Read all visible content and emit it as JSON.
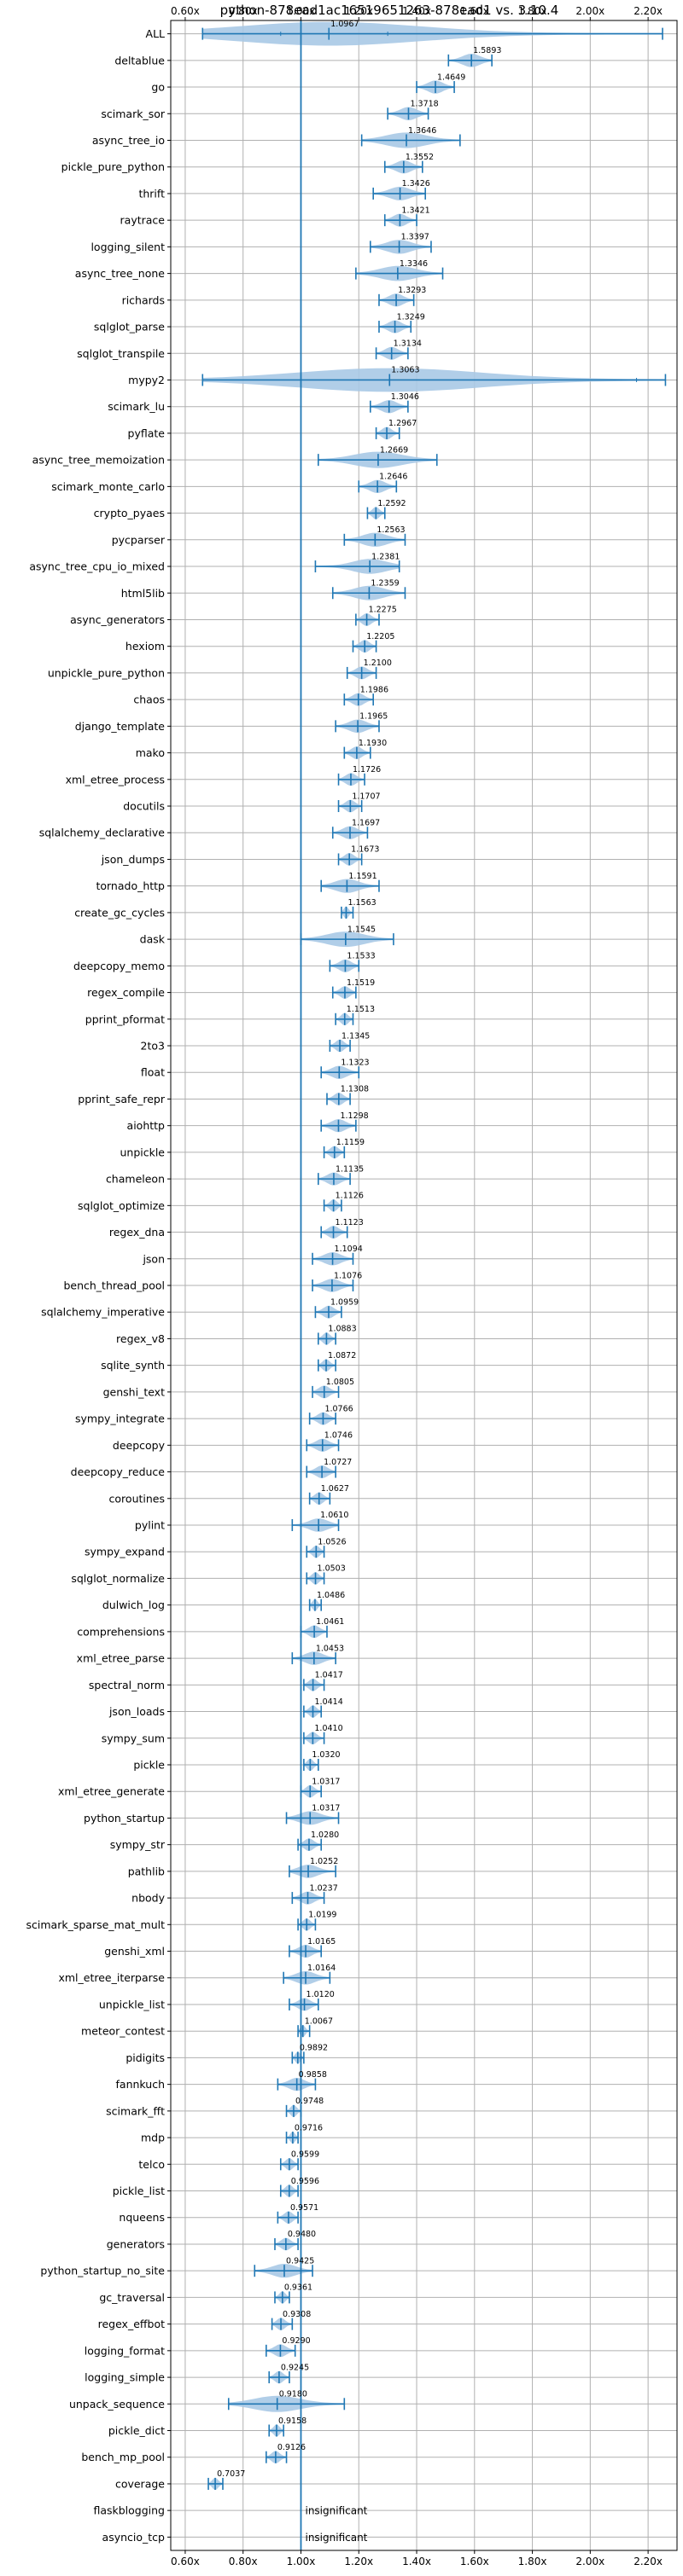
{
  "chart_data": {
    "type": "violin",
    "title": "python-878ead1ac16519651263-878ead1 vs. 3.10.4",
    "xlim": [
      0.55,
      2.3
    ],
    "xticks": [
      0.6,
      0.8,
      1.0,
      1.2,
      1.4,
      1.6,
      1.8,
      2.0,
      2.2
    ],
    "xtick_labels": [
      "0.60x",
      "0.80x",
      "1.00x",
      "1.20x",
      "1.40x",
      "1.60x",
      "1.80x",
      "2.00x",
      "2.20x"
    ],
    "grid": true,
    "reference_line": 1.0,
    "colors": {
      "violin": "#a9c9e6",
      "line": "#1f77b4",
      "grid": "#b0b0b0"
    },
    "benchmarks": [
      {
        "name": "ALL",
        "label": "1.0967",
        "median": 1.0967,
        "min": 0.66,
        "max": 2.25,
        "q1": 0.93,
        "q3": 1.3
      },
      {
        "name": "deltablue",
        "label": "1.5893",
        "median": 1.5893,
        "min": 1.51,
        "max": 1.66
      },
      {
        "name": "go",
        "label": "1.4649",
        "median": 1.4649,
        "min": 1.4,
        "max": 1.53
      },
      {
        "name": "scimark_sor",
        "label": "1.3718",
        "median": 1.3718,
        "min": 1.3,
        "max": 1.44
      },
      {
        "name": "async_tree_io",
        "label": "1.3646",
        "median": 1.3646,
        "min": 1.21,
        "max": 1.55
      },
      {
        "name": "pickle_pure_python",
        "label": "1.3552",
        "median": 1.3552,
        "min": 1.29,
        "max": 1.42
      },
      {
        "name": "thrift",
        "label": "1.3426",
        "median": 1.3426,
        "min": 1.25,
        "max": 1.43
      },
      {
        "name": "raytrace",
        "label": "1.3421",
        "median": 1.3421,
        "min": 1.29,
        "max": 1.4
      },
      {
        "name": "logging_silent",
        "label": "1.3397",
        "median": 1.3397,
        "min": 1.24,
        "max": 1.45
      },
      {
        "name": "async_tree_none",
        "label": "1.3346",
        "median": 1.3346,
        "min": 1.19,
        "max": 1.49
      },
      {
        "name": "richards",
        "label": "1.3293",
        "median": 1.3293,
        "min": 1.27,
        "max": 1.39
      },
      {
        "name": "sqlglot_parse",
        "label": "1.3249",
        "median": 1.3249,
        "min": 1.27,
        "max": 1.38
      },
      {
        "name": "sqlglot_transpile",
        "label": "1.3134",
        "median": 1.3134,
        "min": 1.26,
        "max": 1.37
      },
      {
        "name": "mypy2",
        "label": "1.3063",
        "median": 1.3063,
        "min": 0.66,
        "max": 2.26,
        "q1": 1.0,
        "q3": 2.16
      },
      {
        "name": "scimark_lu",
        "label": "1.3046",
        "median": 1.3046,
        "min": 1.24,
        "max": 1.37
      },
      {
        "name": "pyflate",
        "label": "1.2967",
        "median": 1.2967,
        "min": 1.26,
        "max": 1.34
      },
      {
        "name": "async_tree_memoization",
        "label": "1.2669",
        "median": 1.2669,
        "min": 1.06,
        "max": 1.47
      },
      {
        "name": "scimark_monte_carlo",
        "label": "1.2646",
        "median": 1.2646,
        "min": 1.2,
        "max": 1.33
      },
      {
        "name": "crypto_pyaes",
        "label": "1.2592",
        "median": 1.2592,
        "min": 1.23,
        "max": 1.29
      },
      {
        "name": "pycparser",
        "label": "1.2563",
        "median": 1.2563,
        "min": 1.15,
        "max": 1.36
      },
      {
        "name": "async_tree_cpu_io_mixed",
        "label": "1.2381",
        "median": 1.2381,
        "min": 1.05,
        "max": 1.34
      },
      {
        "name": "html5lib",
        "label": "1.2359",
        "median": 1.2359,
        "min": 1.11,
        "max": 1.36
      },
      {
        "name": "async_generators",
        "label": "1.2275",
        "median": 1.2275,
        "min": 1.19,
        "max": 1.27
      },
      {
        "name": "hexiom",
        "label": "1.2205",
        "median": 1.2205,
        "min": 1.18,
        "max": 1.26
      },
      {
        "name": "unpickle_pure_python",
        "label": "1.2100",
        "median": 1.21,
        "min": 1.16,
        "max": 1.26
      },
      {
        "name": "chaos",
        "label": "1.1986",
        "median": 1.1986,
        "min": 1.15,
        "max": 1.25
      },
      {
        "name": "django_template",
        "label": "1.1965",
        "median": 1.1965,
        "min": 1.12,
        "max": 1.27
      },
      {
        "name": "mako",
        "label": "1.1930",
        "median": 1.193,
        "min": 1.15,
        "max": 1.24
      },
      {
        "name": "xml_etree_process",
        "label": "1.1726",
        "median": 1.1726,
        "min": 1.13,
        "max": 1.22
      },
      {
        "name": "docutils",
        "label": "1.1707",
        "median": 1.1707,
        "min": 1.13,
        "max": 1.21
      },
      {
        "name": "sqlalchemy_declarative",
        "label": "1.1697",
        "median": 1.1697,
        "min": 1.11,
        "max": 1.23
      },
      {
        "name": "json_dumps",
        "label": "1.1673",
        "median": 1.1673,
        "min": 1.13,
        "max": 1.21
      },
      {
        "name": "tornado_http",
        "label": "1.1591",
        "median": 1.1591,
        "min": 1.07,
        "max": 1.27
      },
      {
        "name": "create_gc_cycles",
        "label": "1.1563",
        "median": 1.1563,
        "min": 1.14,
        "max": 1.18
      },
      {
        "name": "dask",
        "label": "1.1545",
        "median": 1.1545,
        "min": 1.0,
        "max": 1.32
      },
      {
        "name": "deepcopy_memo",
        "label": "1.1533",
        "median": 1.1533,
        "min": 1.1,
        "max": 1.2
      },
      {
        "name": "regex_compile",
        "label": "1.1519",
        "median": 1.1519,
        "min": 1.11,
        "max": 1.19
      },
      {
        "name": "pprint_pformat",
        "label": "1.1513",
        "median": 1.1513,
        "min": 1.12,
        "max": 1.18
      },
      {
        "name": "2to3",
        "label": "1.1345",
        "median": 1.1345,
        "min": 1.1,
        "max": 1.17
      },
      {
        "name": "float",
        "label": "1.1323",
        "median": 1.1323,
        "min": 1.07,
        "max": 1.2
      },
      {
        "name": "pprint_safe_repr",
        "label": "1.1308",
        "median": 1.1308,
        "min": 1.09,
        "max": 1.17
      },
      {
        "name": "aiohttp",
        "label": "1.1298",
        "median": 1.1298,
        "min": 1.07,
        "max": 1.19
      },
      {
        "name": "unpickle",
        "label": "1.1159",
        "median": 1.1159,
        "min": 1.08,
        "max": 1.15
      },
      {
        "name": "chameleon",
        "label": "1.1135",
        "median": 1.1135,
        "min": 1.06,
        "max": 1.17
      },
      {
        "name": "sqlglot_optimize",
        "label": "1.1126",
        "median": 1.1126,
        "min": 1.08,
        "max": 1.14
      },
      {
        "name": "regex_dna",
        "label": "1.1123",
        "median": 1.1123,
        "min": 1.07,
        "max": 1.16
      },
      {
        "name": "json",
        "label": "1.1094",
        "median": 1.1094,
        "min": 1.04,
        "max": 1.18
      },
      {
        "name": "bench_thread_pool",
        "label": "1.1076",
        "median": 1.1076,
        "min": 1.04,
        "max": 1.18
      },
      {
        "name": "sqlalchemy_imperative",
        "label": "1.0959",
        "median": 1.0959,
        "min": 1.05,
        "max": 1.14
      },
      {
        "name": "regex_v8",
        "label": "1.0883",
        "median": 1.0883,
        "min": 1.06,
        "max": 1.12
      },
      {
        "name": "sqlite_synth",
        "label": "1.0872",
        "median": 1.0872,
        "min": 1.06,
        "max": 1.12
      },
      {
        "name": "genshi_text",
        "label": "1.0805",
        "median": 1.0805,
        "min": 1.04,
        "max": 1.13
      },
      {
        "name": "sympy_integrate",
        "label": "1.0766",
        "median": 1.0766,
        "min": 1.03,
        "max": 1.12
      },
      {
        "name": "deepcopy",
        "label": "1.0746",
        "median": 1.0746,
        "min": 1.02,
        "max": 1.13
      },
      {
        "name": "deepcopy_reduce",
        "label": "1.0727",
        "median": 1.0727,
        "min": 1.02,
        "max": 1.12
      },
      {
        "name": "coroutines",
        "label": "1.0627",
        "median": 1.0627,
        "min": 1.03,
        "max": 1.1
      },
      {
        "name": "pylint",
        "label": "1.0610",
        "median": 1.061,
        "min": 0.97,
        "max": 1.13
      },
      {
        "name": "sympy_expand",
        "label": "1.0526",
        "median": 1.0526,
        "min": 1.02,
        "max": 1.08
      },
      {
        "name": "sqlglot_normalize",
        "label": "1.0503",
        "median": 1.0503,
        "min": 1.02,
        "max": 1.08
      },
      {
        "name": "dulwich_log",
        "label": "1.0486",
        "median": 1.0486,
        "min": 1.03,
        "max": 1.07
      },
      {
        "name": "comprehensions",
        "label": "1.0461",
        "median": 1.0461,
        "min": 1.0,
        "max": 1.09
      },
      {
        "name": "xml_etree_parse",
        "label": "1.0453",
        "median": 1.0453,
        "min": 0.97,
        "max": 1.12
      },
      {
        "name": "spectral_norm",
        "label": "1.0417",
        "median": 1.0417,
        "min": 1.01,
        "max": 1.08
      },
      {
        "name": "json_loads",
        "label": "1.0414",
        "median": 1.0414,
        "min": 1.01,
        "max": 1.07
      },
      {
        "name": "sympy_sum",
        "label": "1.0410",
        "median": 1.041,
        "min": 1.01,
        "max": 1.08
      },
      {
        "name": "pickle",
        "label": "1.0320",
        "median": 1.032,
        "min": 1.01,
        "max": 1.06
      },
      {
        "name": "xml_etree_generate",
        "label": "1.0317",
        "median": 1.0317,
        "min": 1.0,
        "max": 1.07
      },
      {
        "name": "python_startup",
        "label": "1.0317",
        "median": 1.0317,
        "min": 0.95,
        "max": 1.13
      },
      {
        "name": "sympy_str",
        "label": "1.0280",
        "median": 1.028,
        "min": 0.99,
        "max": 1.07
      },
      {
        "name": "pathlib",
        "label": "1.0252",
        "median": 1.0252,
        "min": 0.96,
        "max": 1.12
      },
      {
        "name": "nbody",
        "label": "1.0237",
        "median": 1.0237,
        "min": 0.97,
        "max": 1.08
      },
      {
        "name": "scimark_sparse_mat_mult",
        "label": "1.0199",
        "median": 1.0199,
        "min": 0.99,
        "max": 1.05
      },
      {
        "name": "genshi_xml",
        "label": "1.0165",
        "median": 1.0165,
        "min": 0.96,
        "max": 1.07
      },
      {
        "name": "xml_etree_iterparse",
        "label": "1.0164",
        "median": 1.0164,
        "min": 0.94,
        "max": 1.1
      },
      {
        "name": "unpickle_list",
        "label": "1.0120",
        "median": 1.012,
        "min": 0.96,
        "max": 1.06
      },
      {
        "name": "meteor_contest",
        "label": "1.0067",
        "median": 1.0067,
        "min": 0.99,
        "max": 1.03
      },
      {
        "name": "pidigits",
        "label": "0.9892",
        "median": 0.9892,
        "min": 0.97,
        "max": 1.01
      },
      {
        "name": "fannkuch",
        "label": "0.9858",
        "median": 0.9858,
        "min": 0.92,
        "max": 1.05
      },
      {
        "name": "scimark_fft",
        "label": "0.9748",
        "median": 0.9748,
        "min": 0.95,
        "max": 1.0
      },
      {
        "name": "mdp",
        "label": "0.9716",
        "median": 0.9716,
        "min": 0.95,
        "max": 0.99
      },
      {
        "name": "telco",
        "label": "0.9599",
        "median": 0.9599,
        "min": 0.93,
        "max": 0.99
      },
      {
        "name": "pickle_list",
        "label": "0.9596",
        "median": 0.9596,
        "min": 0.93,
        "max": 0.99
      },
      {
        "name": "nqueens",
        "label": "0.9571",
        "median": 0.9571,
        "min": 0.92,
        "max": 0.99
      },
      {
        "name": "generators",
        "label": "0.9480",
        "median": 0.948,
        "min": 0.91,
        "max": 0.99
      },
      {
        "name": "python_startup_no_site",
        "label": "0.9425",
        "median": 0.9425,
        "min": 0.84,
        "max": 1.04
      },
      {
        "name": "gc_traversal",
        "label": "0.9361",
        "median": 0.9361,
        "min": 0.91,
        "max": 0.96
      },
      {
        "name": "regex_effbot",
        "label": "0.9308",
        "median": 0.9308,
        "min": 0.9,
        "max": 0.97
      },
      {
        "name": "logging_format",
        "label": "0.9290",
        "median": 0.929,
        "min": 0.88,
        "max": 0.98
      },
      {
        "name": "logging_simple",
        "label": "0.9245",
        "median": 0.9245,
        "min": 0.89,
        "max": 0.96
      },
      {
        "name": "unpack_sequence",
        "label": "0.9180",
        "median": 0.918,
        "min": 0.75,
        "max": 1.15
      },
      {
        "name": "pickle_dict",
        "label": "0.9158",
        "median": 0.9158,
        "min": 0.89,
        "max": 0.94
      },
      {
        "name": "bench_mp_pool",
        "label": "0.9126",
        "median": 0.9126,
        "min": 0.88,
        "max": 0.95
      },
      {
        "name": "coverage",
        "label": "0.7037",
        "median": 0.7037,
        "min": 0.68,
        "max": 0.73
      },
      {
        "name": "flaskblogging",
        "note": "insignificant"
      },
      {
        "name": "asyncio_tcp",
        "note": "insignificant"
      }
    ]
  }
}
